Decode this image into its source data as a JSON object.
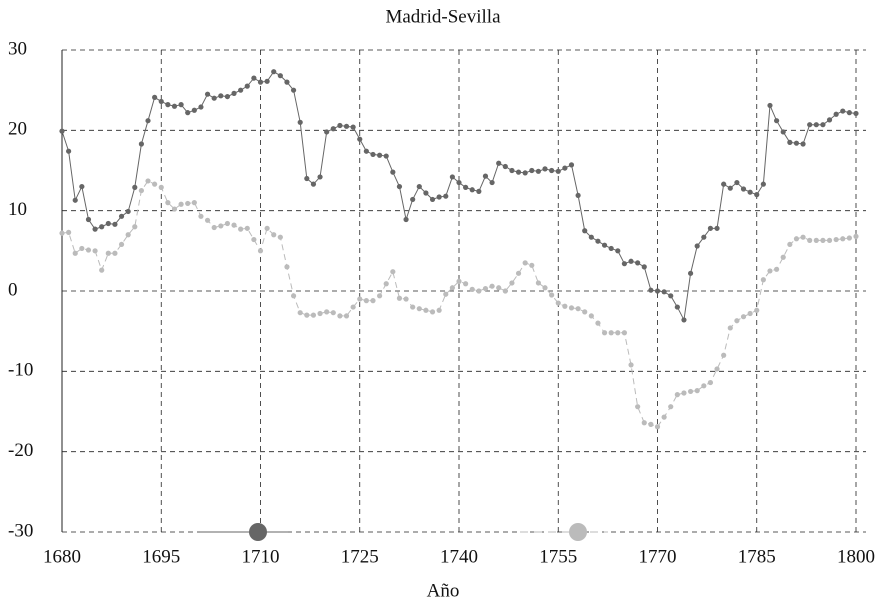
{
  "chart_data": {
    "type": "line",
    "title": "Madrid-Sevilla",
    "x_label": "Año",
    "x": [
      1680,
      1681,
      1682,
      1683,
      1684,
      1685,
      1686,
      1687,
      1688,
      1689,
      1690,
      1691,
      1692,
      1693,
      1694,
      1695,
      1696,
      1697,
      1698,
      1699,
      1700,
      1701,
      1702,
      1703,
      1704,
      1705,
      1706,
      1707,
      1708,
      1709,
      1710,
      1711,
      1712,
      1713,
      1714,
      1715,
      1716,
      1717,
      1718,
      1719,
      1720,
      1721,
      1722,
      1723,
      1724,
      1725,
      1726,
      1727,
      1728,
      1729,
      1730,
      1731,
      1732,
      1733,
      1734,
      1735,
      1736,
      1737,
      1738,
      1739,
      1740,
      1741,
      1742,
      1743,
      1744,
      1745,
      1746,
      1747,
      1748,
      1749,
      1750,
      1751,
      1752,
      1753,
      1754,
      1755,
      1756,
      1757,
      1758,
      1759,
      1760,
      1761,
      1762,
      1763,
      1764,
      1765,
      1766,
      1767,
      1768,
      1769,
      1770,
      1771,
      1772,
      1773,
      1774,
      1775,
      1776,
      1777,
      1778,
      1779,
      1780,
      1781,
      1782,
      1783,
      1784,
      1785,
      1786,
      1787,
      1788,
      1789,
      1790,
      1791,
      1792,
      1793,
      1794,
      1795,
      1796,
      1797,
      1798,
      1799,
      1800
    ],
    "series": [
      {
        "color": "#666666",
        "dashed": false,
        "values": [
          19.9,
          17.4,
          11.3,
          13,
          8.9,
          7.7,
          8.0,
          8.4,
          8.3,
          9.3,
          9.9,
          12.9,
          18.3,
          21.2,
          24.1,
          23.6,
          23.2,
          23,
          23.2,
          22.2,
          22.5,
          22.9,
          24.5,
          24,
          24.3,
          24.2,
          24.6,
          25.0,
          25.5,
          26.5,
          26,
          26.1,
          27.3,
          26.8,
          26.0,
          25,
          21,
          14,
          13.3,
          14.2,
          19.8,
          20.2,
          20.6,
          20.5,
          20.4,
          18.9,
          17.4,
          17,
          16.9,
          16.8,
          14.8,
          13,
          8.9,
          11.4,
          13,
          12.2,
          11.4,
          11.7,
          11.8,
          14.2,
          13.5,
          12.9,
          12.6,
          12.4,
          14.3,
          13.5,
          15.9,
          15.5,
          15,
          14.8,
          14.7,
          15,
          14.9,
          15.2,
          15,
          14.9,
          15.3,
          15.7,
          11.9,
          7.5,
          6.7,
          6.2,
          5.7,
          5.3,
          5,
          3.4,
          3.7,
          3.5,
          3,
          0.1,
          0,
          -0.1,
          -0.6,
          -2,
          -3.6,
          2.2,
          5.6,
          6.7,
          7.8,
          7.8,
          13.3,
          12.8,
          13.5,
          12.7,
          12.3,
          12,
          13.3,
          23.1,
          21.2,
          19.8,
          18.5,
          18.4,
          18.3,
          20.7,
          20.7,
          20.7,
          21.3,
          22,
          22.4,
          22.2,
          22.1
        ]
      },
      {
        "color": "#bbbbbb",
        "dashed": true,
        "values": [
          7.2,
          7.3,
          4.7,
          5.3,
          5.1,
          5,
          2.6,
          4.7,
          4.7,
          5.8,
          7,
          8,
          12.5,
          13.7,
          13.3,
          12.9,
          11,
          10.2,
          10.8,
          10.9,
          11,
          9.3,
          8.8,
          7.9,
          8.1,
          8.4,
          8.2,
          7.7,
          7.8,
          6.4,
          5,
          7.8,
          7,
          6.7,
          3,
          -0.6,
          -2.7,
          -3,
          -3,
          -2.8,
          -2.6,
          -2.7,
          -3.1,
          -3.1,
          -2,
          -1,
          -1.2,
          -1.2,
          -0.6,
          0.9,
          2.4,
          -0.9,
          -1,
          -2,
          -2.2,
          -2.4,
          -2.6,
          -2.4,
          -0.4,
          0.4,
          1.2,
          0.9,
          0.2,
          0,
          0.3,
          0.6,
          0.4,
          0,
          1,
          2.2,
          3.5,
          3.2,
          1,
          0.4,
          -0.5,
          -1.5,
          -1.9,
          -2.1,
          -2.2,
          -2.6,
          -3.1,
          -4,
          -5.2,
          -5.2,
          -5.2,
          -5.2,
          -9.2,
          -14.4,
          -16.4,
          -16.6,
          -16.9,
          -15.7,
          -14.4,
          -12.9,
          -12.7,
          -12.5,
          -12.4,
          -11.8,
          -11.4,
          -9.7,
          -8,
          -4.6,
          -3.7,
          -3.2,
          -2.8,
          -2.4,
          1.4,
          2.5,
          2.7,
          4.2,
          5.8,
          6.5,
          6.7,
          6.3,
          6.3,
          6.3,
          6.3,
          6.4,
          6.5,
          6.6,
          6.8
        ]
      }
    ],
    "xlim": [
      1680,
      1800
    ],
    "xticks": [
      1680,
      1695,
      1710,
      1725,
      1740,
      1755,
      1770,
      1785,
      1800
    ],
    "ylim": [
      -30,
      30
    ],
    "yticks": [
      -30,
      -20,
      -10,
      0,
      10,
      20,
      30
    ],
    "grid": true
  }
}
